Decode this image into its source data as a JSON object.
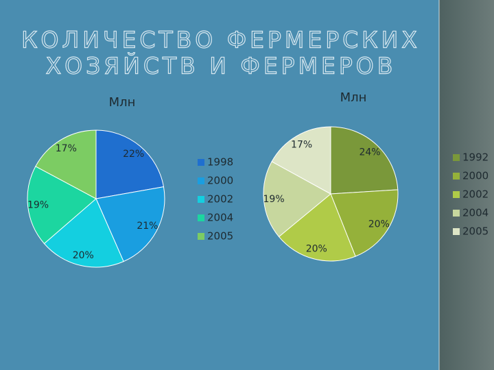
{
  "title": [
    "КОЛИЧЕСТВО ФЕРМЕРСКИХ",
    "ХОЗЯЙСТВ И ФЕРМЕРОВ"
  ],
  "chart_data": [
    {
      "type": "pie",
      "title": "Млн",
      "categories": [
        "1998",
        "2000",
        "2002",
        "2004",
        "2005"
      ],
      "values": [
        22,
        21,
        20,
        19,
        17
      ],
      "colors": [
        "#1f6fcf",
        "#1a9ee0",
        "#14cfe0",
        "#1cd6a0",
        "#7ccc63"
      ],
      "legend": "right"
    },
    {
      "type": "pie",
      "title": "Млн",
      "categories": [
        "1992",
        "2000",
        "2002",
        "2004",
        "2005"
      ],
      "values": [
        24,
        20,
        20,
        19,
        17
      ],
      "colors": [
        "#7a983a",
        "#95b13a",
        "#b0cb48",
        "#c7d79e",
        "#dde5c6"
      ],
      "legend": "right"
    }
  ]
}
